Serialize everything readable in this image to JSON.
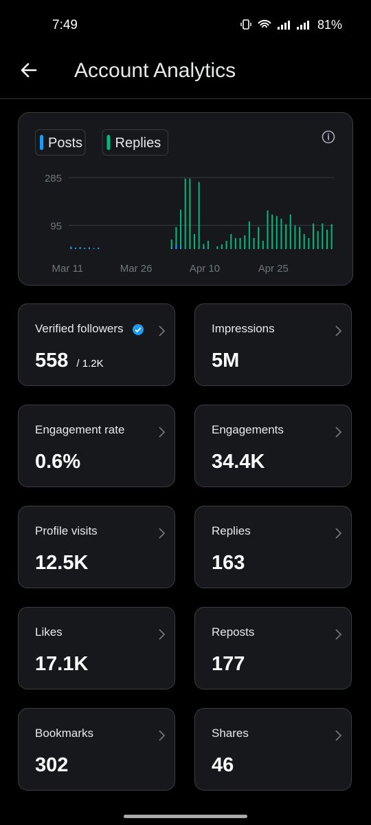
{
  "status_bar": {
    "time": "7:49",
    "battery": "81%"
  },
  "header": {
    "title": "Account Analytics"
  },
  "chart_data": {
    "type": "bar",
    "categories": [
      "Mar 11",
      null,
      null,
      null,
      null,
      null,
      null,
      null,
      null,
      null,
      null,
      null,
      null,
      null,
      null,
      "Mar 26",
      null,
      null,
      null,
      null,
      null,
      null,
      null,
      null,
      null,
      null,
      null,
      null,
      null,
      null,
      "Apr 10",
      null,
      null,
      null,
      null,
      null,
      null,
      null,
      null,
      null,
      null,
      null,
      null,
      null,
      null,
      "Apr 25",
      null,
      null,
      null,
      null,
      null,
      null,
      null,
      null,
      null,
      null,
      null,
      null
    ],
    "series": [
      {
        "name": "Posts",
        "color": "#1d9bf0",
        "values": [
          10,
          6,
          8,
          5,
          7,
          4,
          6,
          0,
          0,
          0,
          0,
          0,
          0,
          0,
          0,
          0,
          0,
          0,
          0,
          0,
          0,
          0,
          8,
          22,
          12,
          0,
          0,
          0,
          0,
          6,
          0,
          0,
          0,
          0,
          0,
          0,
          0,
          0,
          0,
          0,
          0,
          0,
          0,
          0,
          0,
          0,
          0,
          0,
          0,
          0,
          0,
          0,
          0,
          0,
          0,
          0,
          0,
          0
        ]
      },
      {
        "name": "Replies",
        "color": "#00ba7c",
        "values": [
          3,
          2,
          0,
          4,
          2,
          0,
          3,
          0,
          0,
          0,
          0,
          0,
          0,
          0,
          0,
          0,
          0,
          0,
          0,
          0,
          0,
          0,
          38,
          88,
          157,
          281,
          281,
          60,
          267,
          20,
          33,
          0,
          11,
          19,
          33,
          60,
          44,
          44,
          55,
          110,
          44,
          88,
          33,
          154,
          138,
          132,
          121,
          99,
          138,
          94,
          88,
          60,
          44,
          102,
          72,
          102,
          77,
          99
        ]
      }
    ],
    "ylim": [
      0,
      285
    ],
    "yticks": [
      95,
      285
    ],
    "grid": true
  },
  "cards": [
    {
      "label": "Verified followers",
      "value": "558",
      "sub": "/ 1.2K"
    },
    {
      "label": "Impressions",
      "value": "5M"
    },
    {
      "label": "Engagement rate",
      "value": "0.6%"
    },
    {
      "label": "Engagements",
      "value": "34.4K"
    },
    {
      "label": "Profile visits",
      "value": "12.5K"
    },
    {
      "label": "Replies",
      "value": "163"
    },
    {
      "label": "Likes",
      "value": "17.1K"
    },
    {
      "label": "Reposts",
      "value": "177"
    },
    {
      "label": "Bookmarks",
      "value": "302"
    },
    {
      "label": "Shares",
      "value": "46"
    }
  ]
}
